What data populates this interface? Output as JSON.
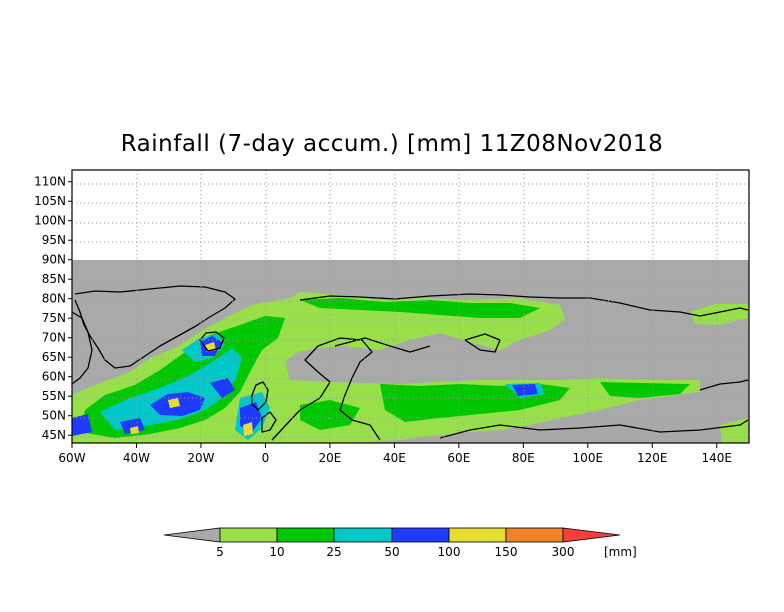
{
  "title": "Rainfall (7-day accum.) [mm] 11Z08Nov2018",
  "map": {
    "lon_range": [
      -60,
      150
    ],
    "lat_range": [
      43,
      113
    ],
    "data_lat_max": 90,
    "lat_tick_labels": [
      "110N",
      "105N",
      "100N",
      "95N",
      "90N",
      "85N",
      "80N",
      "75N",
      "70N",
      "65N",
      "60N",
      "55N",
      "50N",
      "45N"
    ],
    "lon_tick_labels": [
      "60W",
      "40W",
      "20W",
      "0",
      "20E",
      "40E",
      "60E",
      "80E",
      "100E",
      "120E",
      "140E"
    ],
    "no_data_color": "#a9a9a9",
    "grid": true
  },
  "legend": {
    "thresholds": [
      "5",
      "10",
      "25",
      "50",
      "100",
      "150",
      "300"
    ],
    "unit": "[mm]",
    "colors": {
      "below_5": "#a9a9a9",
      "5-10": "#98e04a",
      "10-25": "#00c800",
      "25-50": "#00c8c8",
      "50-100": "#1e3cff",
      "100-150": "#e6dc32",
      "150-300": "#f08228",
      "above_300": "#fa3c3c"
    }
  }
}
